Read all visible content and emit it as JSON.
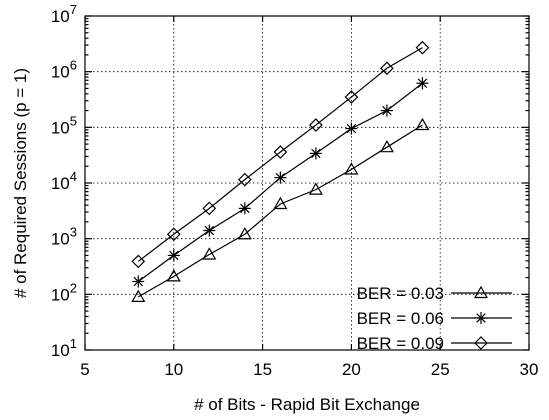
{
  "chart_data": {
    "type": "line",
    "xlabel": "# of Bits - Rapid Bit Exchange",
    "ylabel": "# of Required Sessions (p = 1)",
    "xlim": [
      5,
      30
    ],
    "ylim": [
      10,
      10000000
    ],
    "y_scale": "log",
    "grid": true,
    "legend_position": "bottom-right",
    "x_ticks": [
      "5",
      "10",
      "15",
      "20",
      "25",
      "30"
    ],
    "y_ticks": [
      {
        "base": "10",
        "exp": "1",
        "value": 10
      },
      {
        "base": "10",
        "exp": "2",
        "value": 100
      },
      {
        "base": "10",
        "exp": "3",
        "value": 1000
      },
      {
        "base": "10",
        "exp": "4",
        "value": 10000
      },
      {
        "base": "10",
        "exp": "5",
        "value": 100000
      },
      {
        "base": "10",
        "exp": "6",
        "value": 1000000
      },
      {
        "base": "10",
        "exp": "7",
        "value": 10000000
      }
    ],
    "x": [
      8,
      10,
      12,
      14,
      16,
      18,
      20,
      22,
      24
    ],
    "series": [
      {
        "name": "BER = 0.03",
        "marker": "triangle",
        "values": [
          90,
          210,
          520,
          1200,
          4200,
          7600,
          17500,
          44000,
          110000
        ]
      },
      {
        "name": "BER = 0.06",
        "marker": "star",
        "values": [
          170,
          500,
          1400,
          3500,
          12500,
          34000,
          95000,
          200000,
          620000
        ]
      },
      {
        "name": "BER = 0.09",
        "marker": "diamond",
        "values": [
          390,
          1200,
          3500,
          11500,
          36000,
          110000,
          350000,
          1150000,
          2700000
        ]
      }
    ]
  }
}
